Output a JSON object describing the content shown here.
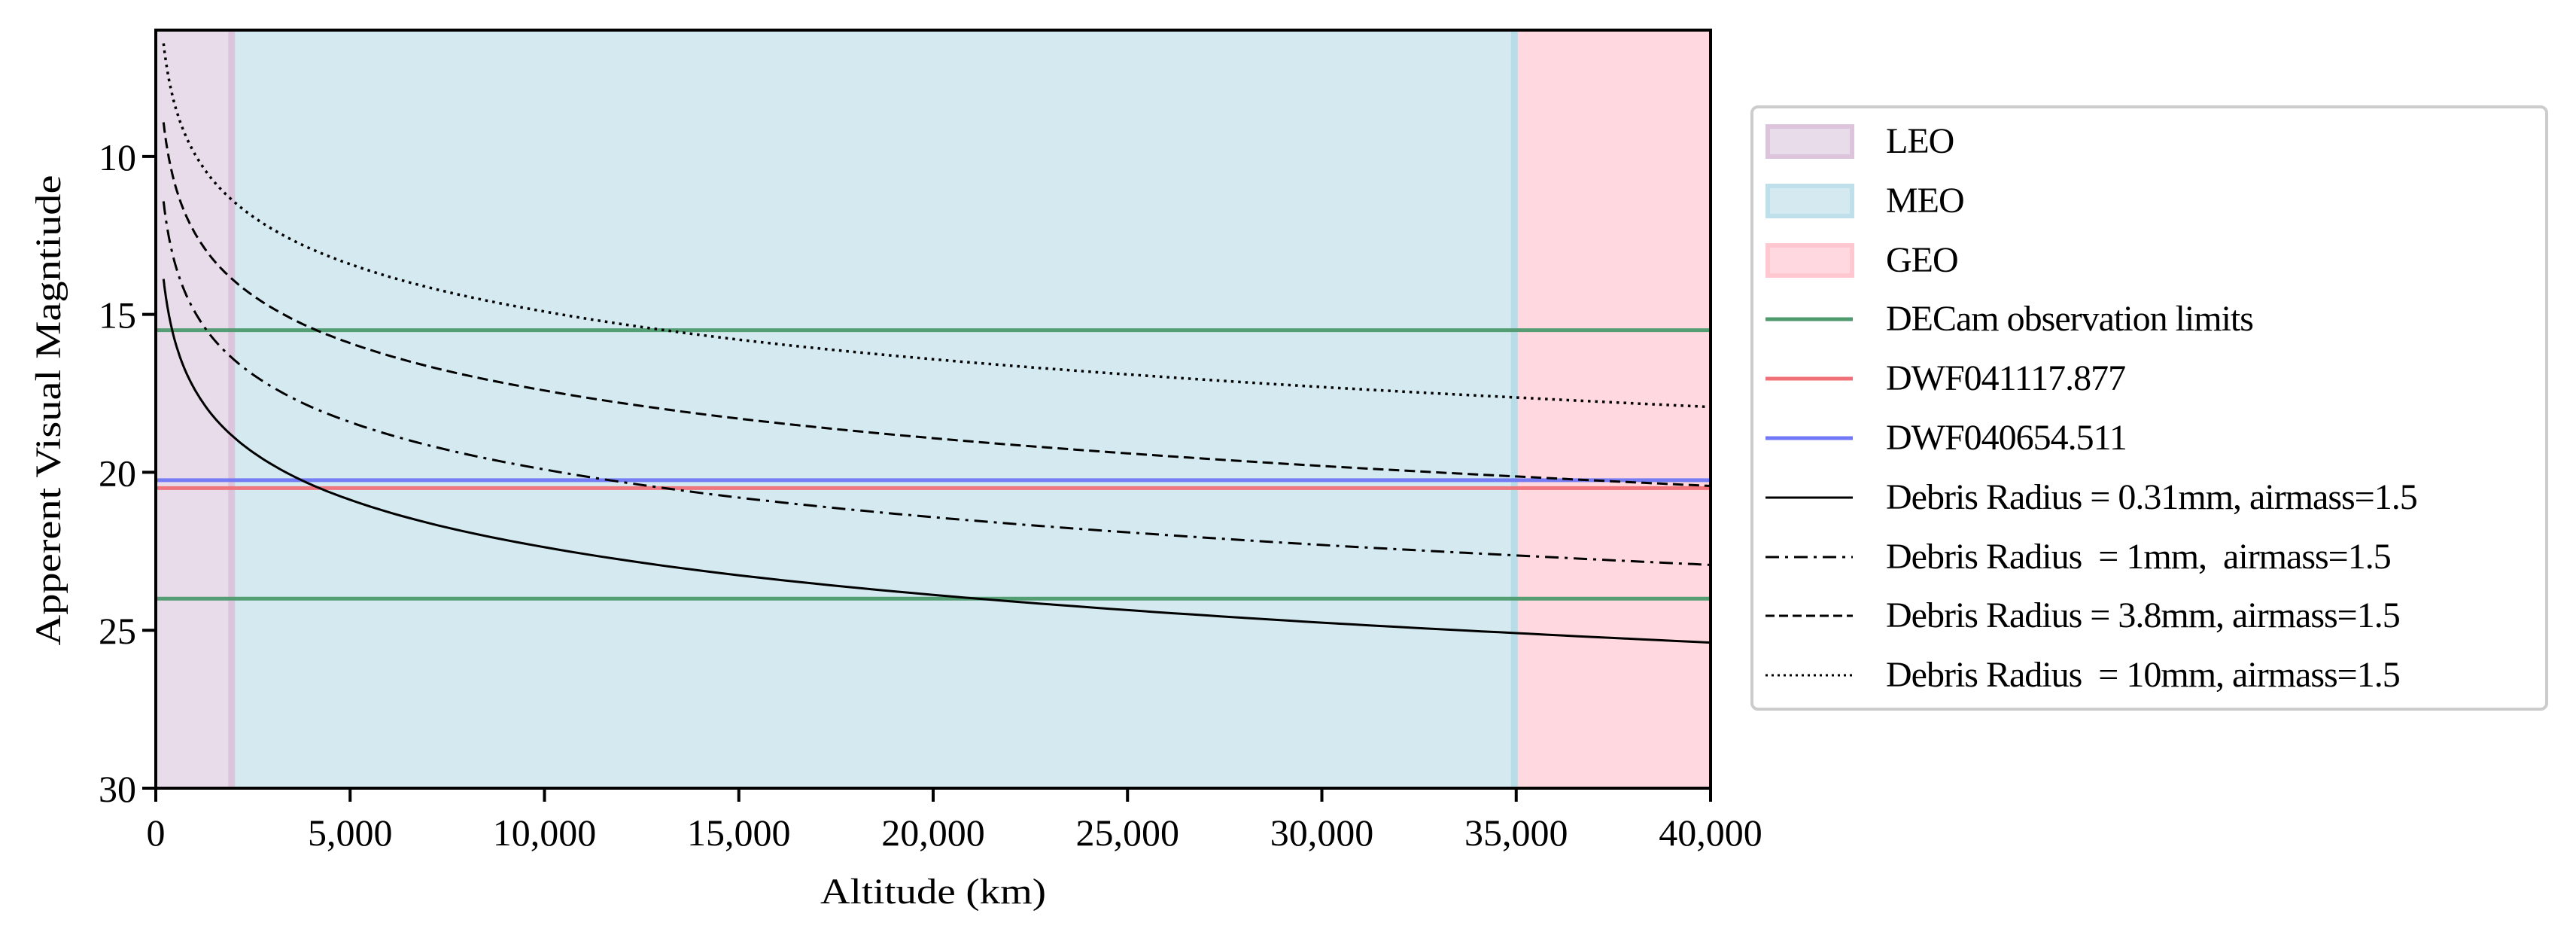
{
  "chart_data": {
    "type": "line",
    "title": "",
    "xlabel": "Altitude (km)",
    "ylabel": "Apperent Visual Magntiude",
    "xlim": [
      0,
      40000
    ],
    "ylim": [
      30,
      6
    ],
    "y_inverted": true,
    "grid": false,
    "legend_position": "outside right",
    "x_ticks": [
      0,
      5000,
      10000,
      15000,
      20000,
      25000,
      30000,
      35000,
      40000
    ],
    "x_tick_labels": [
      "0",
      "5,000",
      "10,000",
      "15,000",
      "20,000",
      "25,000",
      "30,000",
      "35,000",
      "40,000"
    ],
    "y_ticks": [
      10,
      15,
      20,
      25,
      30
    ],
    "y_tick_labels": [
      "10",
      "15",
      "20",
      "25",
      "30"
    ],
    "regions": [
      {
        "name": "LEO",
        "x_start": 0,
        "x_end": 2000,
        "color": "#e8dcea",
        "edge_color": "#d8bcd8"
      },
      {
        "name": "MEO",
        "x_start": 2000,
        "x_end": 35000,
        "color": "#d4eaf0",
        "edge_color": "#add8e6"
      },
      {
        "name": "GEO",
        "x_start": 35000,
        "x_end": 40000,
        "color": "#ffd9df",
        "edge_color": "#ffc0cb"
      }
    ],
    "hlines": [
      {
        "name": "DECam observation limits",
        "y": 15.5,
        "color": "#4e9a6e"
      },
      {
        "name": "DECam observation limits",
        "y": 24.0,
        "color": "#4e9a6e"
      },
      {
        "name": "DWF041117.877",
        "y": 20.5,
        "color": "#f07078"
      },
      {
        "name": "DWF040654.511",
        "y": 20.25,
        "color": "#7078f5"
      }
    ],
    "x": [
      200,
      300,
      500,
      750,
      1000,
      1500,
      2000,
      3000,
      4000,
      5000,
      7500,
      10000,
      15000,
      20000,
      25000,
      30000,
      35000,
      40000
    ],
    "series": [
      {
        "name": "Debris Radius = 0.31mm, airmass=1.5",
        "linestyle": "solid",
        "values": [
          13.88,
          14.76,
          15.87,
          16.75,
          17.37,
          18.26,
          18.88,
          19.76,
          20.39,
          20.87,
          21.75,
          22.37,
          23.26,
          23.88,
          24.36,
          24.76,
          25.09,
          25.39
        ]
      },
      {
        "name": "Debris Radius  = 1mm,  airmass=1.5",
        "linestyle": "dashdot",
        "values": [
          11.42,
          12.3,
          13.41,
          14.29,
          14.91,
          15.8,
          16.42,
          17.3,
          17.93,
          18.41,
          19.29,
          19.91,
          20.8,
          21.42,
          21.9,
          22.3,
          22.63,
          22.93
        ]
      },
      {
        "name": "Debris Radius = 3.8mm, airmass=1.5",
        "linestyle": "dashed",
        "values": [
          8.92,
          9.8,
          10.91,
          11.79,
          12.41,
          13.3,
          13.92,
          14.8,
          15.43,
          15.91,
          16.79,
          17.41,
          18.3,
          18.92,
          19.4,
          19.8,
          20.13,
          20.43
        ]
      },
      {
        "name": "Debris Radius  = 10mm, airmass=1.5",
        "linestyle": "dotted",
        "values": [
          6.42,
          7.3,
          8.41,
          9.29,
          9.91,
          10.8,
          11.42,
          12.3,
          12.93,
          13.41,
          14.29,
          14.91,
          15.8,
          16.42,
          16.9,
          17.3,
          17.63,
          17.93
        ]
      }
    ]
  },
  "axes": {
    "xlabel": "Altitude (km)",
    "ylabel": "Apperent Visual Magntiude"
  },
  "legend": {
    "items": [
      {
        "label": "LEO",
        "kind": "patch",
        "color": "#e8dcea",
        "edge": "#dcc4dc"
      },
      {
        "label": "MEO",
        "kind": "patch",
        "color": "#d4eaf0",
        "edge": "#bfe0ea"
      },
      {
        "label": "GEO",
        "kind": "patch",
        "color": "#ffd9df",
        "edge": "#ffc8d0"
      },
      {
        "label": "DECam observation limits",
        "kind": "line",
        "color": "#4e9a6e",
        "dash": ""
      },
      {
        "label": "DWF041117.877",
        "kind": "line",
        "color": "#f07078",
        "dash": ""
      },
      {
        "label": "DWF040654.511",
        "kind": "line",
        "color": "#7078f5",
        "dash": ""
      },
      {
        "label": "Debris Radius = 0.31mm, airmass=1.5",
        "kind": "line",
        "color": "#000000",
        "dash": ""
      },
      {
        "label": "Debris Radius  = 1mm,  airmass=1.5",
        "kind": "line",
        "color": "#000000",
        "dash": "18,8,4,8"
      },
      {
        "label": "Debris Radius = 3.8mm, airmass=1.5",
        "kind": "line",
        "color": "#000000",
        "dash": "12,6"
      },
      {
        "label": "Debris Radius  = 10mm, airmass=1.5",
        "kind": "line",
        "color": "#000000",
        "dash": "3,5"
      }
    ]
  }
}
